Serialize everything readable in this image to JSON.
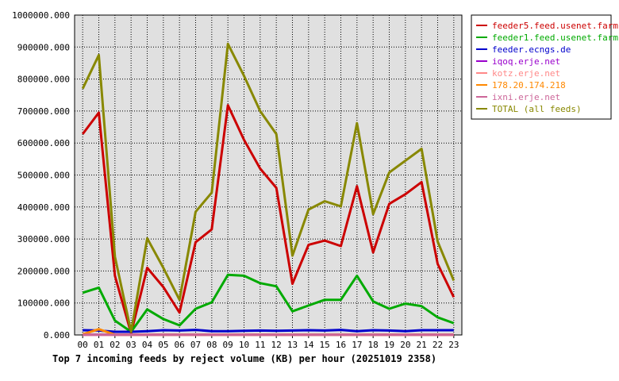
{
  "chart_data": {
    "type": "line",
    "title": "Top 7 incoming feeds by reject volume (KB) per hour (20251019 2358)",
    "xlabel": "",
    "ylabel": "",
    "categories": [
      "00",
      "01",
      "02",
      "03",
      "04",
      "05",
      "06",
      "07",
      "08",
      "09",
      "10",
      "11",
      "12",
      "13",
      "14",
      "15",
      "16",
      "17",
      "18",
      "19",
      "20",
      "21",
      "22",
      "23"
    ],
    "y_ticks": [
      "0.000",
      "100000.000",
      "200000.000",
      "300000.000",
      "400000.000",
      "500000.000",
      "600000.000",
      "700000.000",
      "800000.000",
      "900000.000",
      "1000000.000"
    ],
    "ylim": [
      0,
      1000000
    ],
    "grid": true,
    "legend_position": "right",
    "series": [
      {
        "name": "feeder5.feed.usenet.farm",
        "color": "#cc0000",
        "values": [
          628000,
          695000,
          185000,
          5000,
          210000,
          150000,
          70000,
          290000,
          330000,
          718000,
          610000,
          520000,
          460000,
          160000,
          282000,
          295000,
          278000,
          465000,
          258000,
          410000,
          440000,
          478000,
          222000,
          118000
        ]
      },
      {
        "name": "feeder1.feed.usenet.farm",
        "color": "#00aa00",
        "values": [
          132000,
          148000,
          45000,
          10000,
          80000,
          50000,
          30000,
          82000,
          102000,
          188000,
          185000,
          162000,
          152000,
          74000,
          92000,
          110000,
          110000,
          185000,
          105000,
          82000,
          98000,
          90000,
          55000,
          37000
        ]
      },
      {
        "name": "feeder.ecngs.de",
        "color": "#0000cc",
        "values": [
          15000,
          14000,
          10000,
          10000,
          12000,
          15000,
          14000,
          16000,
          12000,
          12000,
          13000,
          14000,
          13000,
          14000,
          15000,
          14000,
          16000,
          12000,
          15000,
          14000,
          12000,
          15000,
          15000,
          15000
        ]
      },
      {
        "name": "iqoq.erje.net",
        "color": "#9900cc",
        "values": [
          1000,
          1000,
          1000,
          1000,
          1000,
          1000,
          1000,
          1000,
          1000,
          1000,
          1000,
          1000,
          1000,
          1000,
          1000,
          1000,
          1000,
          1000,
          1000,
          1000,
          1000,
          1000,
          1000,
          1000
        ]
      },
      {
        "name": "kotz.erje.net",
        "color": "#ff8888",
        "values": [
          500,
          500,
          500,
          500,
          500,
          500,
          500,
          500,
          500,
          500,
          500,
          500,
          500,
          500,
          500,
          500,
          500,
          500,
          500,
          500,
          500,
          500,
          500,
          500
        ]
      },
      {
        "name": "178.20.174.218",
        "color": "#ff8800",
        "values": [
          2000,
          18000,
          1000,
          500,
          500,
          500,
          500,
          500,
          500,
          500,
          500,
          500,
          500,
          500,
          500,
          500,
          500,
          500,
          500,
          500,
          500,
          500,
          500,
          500
        ]
      },
      {
        "name": "ixni.erje.net",
        "color": "#cc6699",
        "values": [
          500,
          500,
          500,
          500,
          500,
          500,
          500,
          500,
          500,
          500,
          500,
          500,
          500,
          500,
          500,
          500,
          500,
          500,
          500,
          500,
          500,
          500,
          500,
          500
        ]
      },
      {
        "name": "TOTAL (all feeds)",
        "color": "#888800",
        "values": [
          770000,
          875000,
          245000,
          10000,
          302000,
          210000,
          110000,
          385000,
          445000,
          910000,
          810000,
          700000,
          628000,
          248000,
          392000,
          418000,
          402000,
          662000,
          378000,
          508000,
          545000,
          582000,
          292000,
          170000
        ]
      }
    ]
  }
}
